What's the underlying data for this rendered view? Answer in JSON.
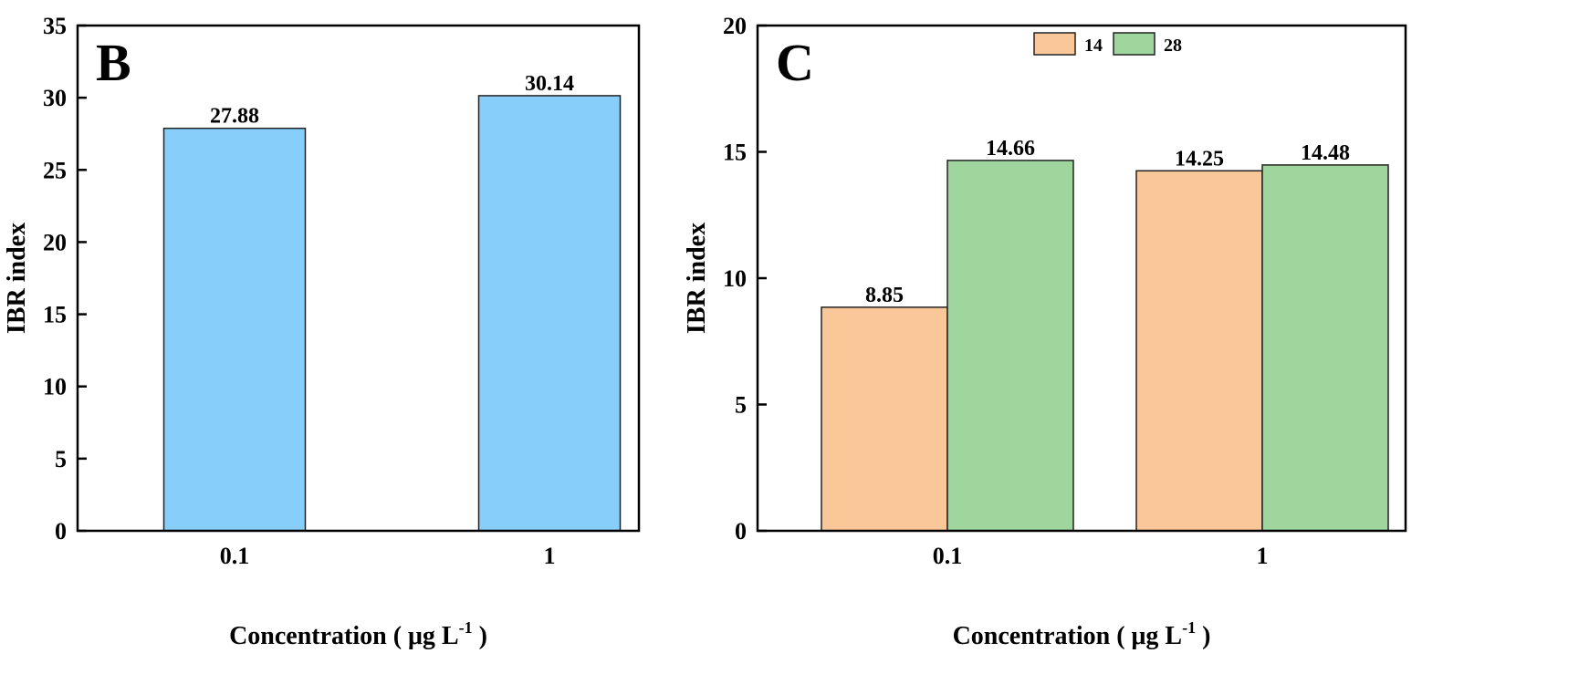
{
  "chart_data": [
    {
      "type": "bar",
      "panel_label": "B",
      "categories": [
        "0.1",
        "1"
      ],
      "values": [
        27.88,
        30.14
      ],
      "data_labels": [
        "27.88",
        "30.14"
      ],
      "xlabel": "Concentration ( μg L",
      "xlabel_sup": "-1",
      "xlabel_end": " )",
      "ylabel": "IBR index",
      "ylim": [
        0,
        35
      ],
      "yticks": [
        "0",
        "5",
        "10",
        "15",
        "20",
        "25",
        "30",
        "35"
      ],
      "color": "#87CEFA",
      "grid": false
    },
    {
      "type": "bar",
      "panel_label": "C",
      "categories": [
        "0.1",
        "1"
      ],
      "series": [
        {
          "name": "14",
          "values": [
            8.85,
            14.25
          ],
          "data_labels": [
            "8.85",
            "14.25"
          ],
          "color": "#FAC898"
        },
        {
          "name": "28",
          "values": [
            14.66,
            14.48
          ],
          "data_labels": [
            "14.66",
            "14.48"
          ],
          "color": "#9ED69E"
        }
      ],
      "xlabel": "Concentration ( μg L",
      "xlabel_sup": "-1",
      "xlabel_end": " )",
      "ylabel": "IBR index",
      "ylim": [
        0,
        20
      ],
      "yticks": [
        "0",
        "5",
        "10",
        "15",
        "20"
      ],
      "legend": "top-center",
      "grid": false
    }
  ]
}
